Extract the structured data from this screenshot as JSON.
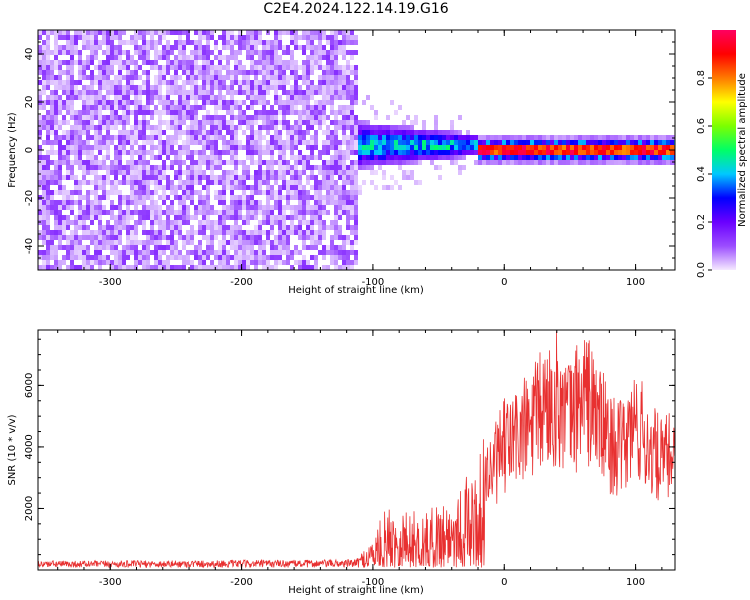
{
  "title": "C2E4.2024.122.14.19.G16",
  "chart_data": [
    {
      "type": "heatmap",
      "xlabel": "Height of straight line (km)",
      "ylabel": "Frequency (Hz)",
      "xlim": [
        -355,
        130
      ],
      "ylim": [
        -50,
        50
      ],
      "xticks": [
        -300,
        -200,
        -100,
        0,
        100
      ],
      "yticks": [
        -40,
        -20,
        0,
        20,
        40
      ],
      "grid": false,
      "colorbar": {
        "label": "Normalized spectral amplitude",
        "range": [
          0.0,
          1.0
        ],
        "ticks": [
          0.0,
          0.2,
          0.4,
          0.6,
          0.8
        ],
        "colormap": [
          "#f5e9ff",
          "#9b4dff",
          "#6a00ff",
          "#0000ff",
          "#00c8ff",
          "#00ff66",
          "#7cff00",
          "#ffff00",
          "#ff7a00",
          "#ff0000",
          "#ff0060"
        ]
      },
      "regions": [
        {
          "x_range": [
            -355,
            -112
          ],
          "description": "broadband noise",
          "amplitude_range": [
            0.0,
            0.1
          ]
        },
        {
          "x_range": [
            -112,
            -20
          ],
          "center_hz": 2,
          "spread_hz": 10,
          "amplitude_range": [
            0.05,
            0.45
          ]
        },
        {
          "x_range": [
            -20,
            130
          ],
          "center_hz": 0,
          "spread_hz": 2,
          "amplitude_range": [
            0.7,
            1.0
          ]
        }
      ]
    },
    {
      "type": "line",
      "xlabel": "Height of straight line (km)",
      "ylabel": "SNR (10 * v/v)",
      "xlim": [
        -355,
        130
      ],
      "ylim": [
        0,
        7800
      ],
      "xticks": [
        -300,
        -200,
        -100,
        0,
        100
      ],
      "yticks": [
        2000,
        4000,
        6000
      ],
      "grid": false,
      "color": "#e83030",
      "series": [
        {
          "x": [
            -355,
            -330,
            -300,
            -250,
            -200,
            -150,
            -120,
            -110,
            -100,
            -90,
            -80,
            -70,
            -60,
            -50,
            -40,
            -30,
            -20,
            -15,
            -10,
            0,
            10,
            20,
            30,
            40,
            50,
            60,
            70,
            80,
            90,
            100,
            110,
            120,
            130
          ],
          "values": [
            250,
            250,
            250,
            260,
            270,
            280,
            290,
            330,
            800,
            1500,
            1600,
            1450,
            1350,
            1700,
            2000,
            2300,
            2500,
            3500,
            3400,
            4300,
            4700,
            5000,
            5700,
            6000,
            5300,
            6200,
            5500,
            4500,
            4200,
            5200,
            4300,
            3800,
            4100
          ]
        }
      ]
    }
  ]
}
